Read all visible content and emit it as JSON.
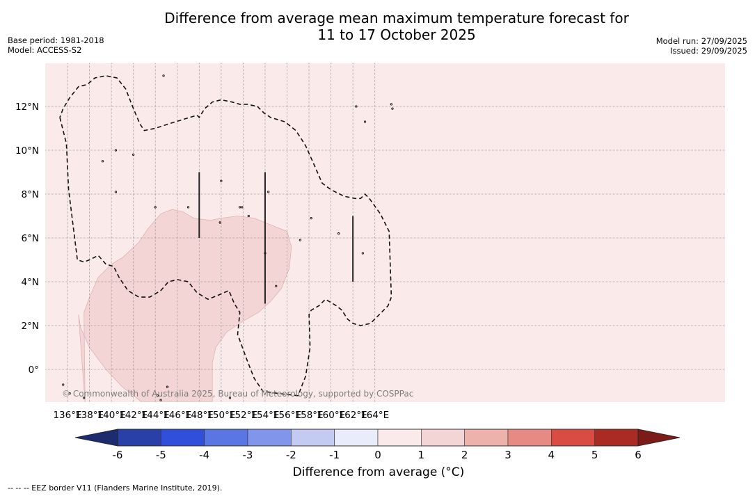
{
  "header": {
    "title_line1": "Difference from average mean maximum temperature forecast for",
    "title_line2": "11 to 17 October 2025",
    "base_period": "Base period: 1981-2018",
    "model": "Model: ACCESS-S2",
    "model_run": "Model run: 27/09/2025",
    "issued": "Issued: 29/09/2025"
  },
  "map": {
    "lon_range": [
      135,
      166
    ],
    "lat_range": [
      -1.5,
      14
    ],
    "lon_ticks": [
      136,
      138,
      140,
      142,
      144,
      146,
      148,
      150,
      152,
      154,
      156,
      158,
      160,
      162,
      164
    ],
    "lon_tick_labels": [
      "136°E",
      "138°E",
      "140°E",
      "142°E",
      "144°E",
      "146°E",
      "148°E",
      "150°E",
      "152°E",
      "154°E",
      "156°E",
      "158°E",
      "160°E",
      "162°E",
      "164°E"
    ],
    "lat_ticks": [
      0,
      2,
      4,
      6,
      8,
      10,
      12
    ],
    "lat_tick_labels": [
      "0°",
      "2°N",
      "4°N",
      "6°N",
      "8°N",
      "10°N",
      "12°N"
    ],
    "background_category": "0 to 1",
    "copyright": "© Commonwealth of Australia 2025, Bureau of Meteorology, supported by COSPPac",
    "regions": [
      {
        "name": "anomaly-1-to-2",
        "range": [
          1,
          2
        ],
        "color": "#f4d5d5",
        "outline_lonlat": [
          [
            137.6,
            -1.5
          ],
          [
            137.0,
            2.5
          ],
          [
            137.2,
            1.9
          ],
          [
            138.0,
            1.0
          ],
          [
            139.5,
            0.0
          ],
          [
            141.0,
            -0.8
          ],
          [
            142.8,
            -1.5
          ],
          [
            149.2,
            -1.5
          ],
          [
            149.2,
            0.3
          ],
          [
            149.5,
            1.0
          ],
          [
            150.5,
            1.7
          ],
          [
            152.0,
            2.2
          ],
          [
            153.4,
            2.6
          ],
          [
            154.5,
            3.1
          ],
          [
            155.5,
            3.7
          ],
          [
            156.2,
            4.6
          ],
          [
            156.4,
            5.6
          ],
          [
            156.0,
            6.3
          ],
          [
            154.5,
            6.6
          ],
          [
            153.0,
            6.9
          ],
          [
            151.5,
            7.0
          ],
          [
            150.0,
            6.9
          ],
          [
            149.0,
            6.8
          ],
          [
            147.5,
            6.9
          ],
          [
            146.5,
            7.2
          ],
          [
            145.5,
            7.3
          ],
          [
            144.5,
            7.1
          ],
          [
            143.3,
            6.4
          ],
          [
            142.5,
            5.8
          ],
          [
            141.0,
            5.1
          ],
          [
            140.0,
            4.8
          ],
          [
            138.8,
            4.2
          ],
          [
            138.0,
            3.3
          ],
          [
            137.5,
            2.6
          ]
        ]
      }
    ],
    "eez_border_lonlat": [
      [
        [
          135.3,
          11.5
        ],
        [
          135.9,
          10.3
        ],
        [
          136.1,
          8.2
        ],
        [
          136.9,
          5.0
        ],
        [
          137.5,
          4.9
        ],
        [
          138.0,
          5.0
        ],
        [
          138.8,
          5.2
        ],
        [
          139.5,
          4.8
        ],
        [
          140.2,
          4.7
        ],
        [
          140.7,
          4.2
        ],
        [
          141.5,
          3.6
        ],
        [
          142.5,
          3.3
        ],
        [
          143.5,
          3.3
        ],
        [
          144.5,
          3.6
        ],
        [
          145.2,
          4.0
        ],
        [
          146.0,
          4.1
        ],
        [
          147.0,
          4.0
        ],
        [
          147.8,
          3.5
        ],
        [
          148.8,
          3.2
        ],
        [
          149.8,
          3.4
        ],
        [
          150.7,
          3.6
        ],
        [
          151.2,
          3.0
        ],
        [
          151.7,
          2.6
        ],
        [
          151.5,
          1.6
        ],
        [
          152.3,
          0.5
        ],
        [
          153.0,
          -0.4
        ],
        [
          153.8,
          -1.0
        ],
        [
          155.2,
          -1.1
        ],
        [
          157.0,
          -1.2
        ],
        [
          157.7,
          -0.3
        ],
        [
          158.1,
          1.0
        ],
        [
          158.0,
          2.5
        ],
        [
          158.2,
          2.7
        ],
        [
          158.9,
          2.9
        ],
        [
          159.5,
          3.2
        ],
        [
          160.5,
          2.9
        ],
        [
          161.0,
          2.7
        ],
        [
          161.5,
          2.3
        ],
        [
          162.0,
          2.1
        ],
        [
          162.7,
          2.0
        ],
        [
          163.6,
          2.1
        ],
        [
          164.4,
          2.5
        ],
        [
          165.2,
          2.9
        ],
        [
          165.5,
          3.3
        ],
        [
          165.4,
          4.8
        ],
        [
          165.3,
          6.3
        ],
        [
          164.5,
          7.1
        ],
        [
          163.5,
          7.8
        ],
        [
          163.1,
          8.0
        ],
        [
          162.7,
          7.8
        ],
        [
          162.2,
          7.8
        ],
        [
          161.2,
          7.9
        ],
        [
          160.0,
          8.2
        ],
        [
          159.2,
          8.5
        ],
        [
          158.5,
          9.3
        ],
        [
          157.7,
          10.2
        ],
        [
          157.2,
          10.6
        ],
        [
          156.8,
          10.9
        ],
        [
          155.8,
          11.3
        ],
        [
          154.5,
          11.5
        ],
        [
          153.9,
          11.7
        ],
        [
          153.3,
          12.0
        ],
        [
          152.4,
          12.1
        ],
        [
          151.7,
          12.1
        ],
        [
          151.0,
          12.2
        ],
        [
          150.0,
          12.3
        ],
        [
          149.2,
          12.2
        ],
        [
          148.5,
          11.9
        ],
        [
          148.0,
          11.5
        ],
        [
          147.8,
          11.6
        ],
        [
          146.5,
          11.4
        ],
        [
          145.2,
          11.2
        ],
        [
          144.0,
          11.0
        ],
        [
          143.0,
          10.9
        ],
        [
          142.6,
          11.2
        ],
        [
          142.0,
          11.9
        ],
        [
          141.3,
          12.8
        ],
        [
          140.5,
          13.3
        ],
        [
          139.5,
          13.4
        ],
        [
          138.5,
          13.3
        ],
        [
          137.8,
          13.0
        ],
        [
          137.0,
          12.9
        ],
        [
          136.2,
          12.4
        ],
        [
          135.6,
          11.9
        ],
        [
          135.3,
          11.5
        ]
      ]
    ],
    "vertical_segments_lonlat": [
      [
        [
          148.0,
          6.0
        ],
        [
          148.0,
          9.0
        ]
      ],
      [
        [
          154.0,
          3.0
        ],
        [
          154.0,
          9.0
        ]
      ],
      [
        [
          162.0,
          4.0
        ],
        [
          162.0,
          7.0
        ]
      ]
    ],
    "islands_lonlat": [
      [
        144.75,
        13.4
      ],
      [
        139.2,
        9.5
      ],
      [
        140.4,
        10.0
      ],
      [
        142.0,
        9.8
      ],
      [
        140.4,
        8.1
      ],
      [
        144.0,
        7.4
      ],
      [
        147.0,
        7.4
      ],
      [
        150.0,
        8.6
      ],
      [
        149.9,
        6.7
      ],
      [
        151.7,
        7.4
      ],
      [
        151.9,
        7.4
      ],
      [
        154.3,
        8.1
      ],
      [
        152.5,
        7.0
      ],
      [
        158.2,
        6.9
      ],
      [
        157.2,
        5.9
      ],
      [
        160.7,
        6.2
      ],
      [
        162.9,
        5.3
      ],
      [
        154.0,
        5.3
      ],
      [
        155.0,
        3.8
      ],
      [
        162.3,
        12.0
      ],
      [
        163.1,
        11.3
      ],
      [
        165.5,
        12.1
      ],
      [
        165.6,
        11.9
      ],
      [
        144.2,
        -1.2
      ],
      [
        145.1,
        -0.8
      ],
      [
        135.6,
        -0.7
      ],
      [
        136.2,
        -1.1
      ],
      [
        137.5,
        -1.3
      ],
      [
        144.5,
        -1.4
      ],
      [
        150.8,
        -1.3
      ]
    ]
  },
  "colorbar": {
    "title": "Difference from average (°C)",
    "ticks": [
      "-6",
      "-5",
      "-4",
      "-3",
      "-2",
      "-1",
      "0",
      "1",
      "2",
      "3",
      "4",
      "5",
      "6"
    ],
    "tick_values": [
      -6,
      -5,
      -4,
      -3,
      -2,
      -1,
      0,
      1,
      2,
      3,
      4,
      5,
      6
    ],
    "under_color": "#1c2c6e",
    "over_color": "#7b1c18",
    "bins": [
      {
        "range": [
          -6,
          -5
        ],
        "color": "#2a40a9"
      },
      {
        "range": [
          -5,
          -4
        ],
        "color": "#3050dc"
      },
      {
        "range": [
          -4,
          -3
        ],
        "color": "#5a76e2"
      },
      {
        "range": [
          -3,
          -2
        ],
        "color": "#8196ea"
      },
      {
        "range": [
          -2,
          -1
        ],
        "color": "#c3cbf3"
      },
      {
        "range": [
          -1,
          0
        ],
        "color": "#e9ecfa"
      },
      {
        "range": [
          0,
          1
        ],
        "color": "#fbeaea"
      },
      {
        "range": [
          1,
          2
        ],
        "color": "#f4d5d5"
      },
      {
        "range": [
          2,
          3
        ],
        "color": "#eeb2ad"
      },
      {
        "range": [
          3,
          4
        ],
        "color": "#e88a84"
      },
      {
        "range": [
          4,
          5
        ],
        "color": "#d94c44"
      },
      {
        "range": [
          5,
          6
        ],
        "color": "#aa2a24"
      }
    ]
  },
  "footnote": "-- -- -- EEZ border V11 (Flanders Marine Institute, 2019)."
}
